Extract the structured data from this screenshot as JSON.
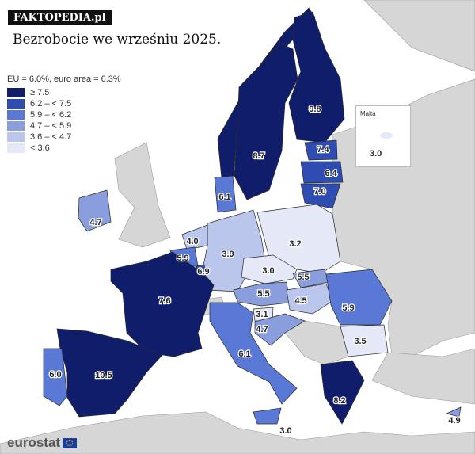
{
  "brand": "FAKTOPEDIA.pl",
  "title": "Bezrobocie we wrześniu 2025.",
  "legend": {
    "header": "EU = 6.0%, euro area = 6.3%",
    "bins": [
      {
        "label": "≥ 7.5",
        "min": 7.5,
        "color": "#101d6b"
      },
      {
        "label": "6.2 – < 7.5",
        "min": 6.2,
        "color": "#2f4cb2"
      },
      {
        "label": "5.9 – < 6.2",
        "min": 5.9,
        "color": "#5a78d5"
      },
      {
        "label": "4.7 – < 5.9",
        "min": 4.7,
        "color": "#8a9ede"
      },
      {
        "label": "3.6 – < 4.7",
        "min": 3.6,
        "color": "#bac6ec"
      },
      {
        "label": "< 3.6",
        "min": 0,
        "color": "#e4e8f7"
      }
    ]
  },
  "regions": [
    {
      "id": "fi",
      "value": 9.8
    },
    {
      "id": "se",
      "value": 8.7
    },
    {
      "id": "ee",
      "value": 7.4
    },
    {
      "id": "lv",
      "value": 6.4
    },
    {
      "id": "lt",
      "value": 7.0
    },
    {
      "id": "dk",
      "value": 6.1
    },
    {
      "id": "ie",
      "value": 4.7
    },
    {
      "id": "nl",
      "value": 4.0
    },
    {
      "id": "be",
      "value": 5.9
    },
    {
      "id": "lu",
      "value": 6.9
    },
    {
      "id": "de",
      "value": 3.9
    },
    {
      "id": "pl",
      "value": 3.2
    },
    {
      "id": "cz",
      "value": 3.0
    },
    {
      "id": "sk",
      "value": 5.5
    },
    {
      "id": "at",
      "value": 5.5
    },
    {
      "id": "hu",
      "value": 4.5
    },
    {
      "id": "ro",
      "value": 5.9
    },
    {
      "id": "si",
      "value": 3.1
    },
    {
      "id": "hr",
      "value": 4.7
    },
    {
      "id": "bg",
      "value": 3.5
    },
    {
      "id": "gr",
      "value": 8.2
    },
    {
      "id": "it",
      "value": 6.1
    },
    {
      "id": "fr",
      "value": 7.6
    },
    {
      "id": "es",
      "value": 10.5
    },
    {
      "id": "pt",
      "value": 6.0
    },
    {
      "id": "cy",
      "value": 4.9
    },
    {
      "id": "mt",
      "value": 3.0
    }
  ],
  "inset": {
    "name": "Malta",
    "value": "3.0"
  },
  "logo": "eurostat"
}
